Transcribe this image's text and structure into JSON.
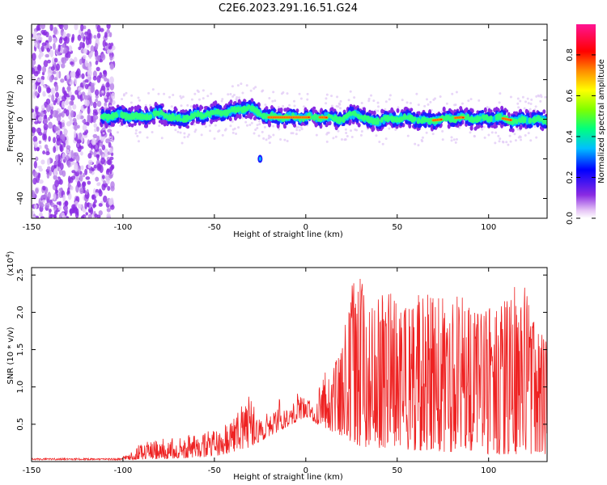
{
  "title": "C2E6.2023.291.16.51.G24",
  "chart_data": [
    {
      "type": "heatmap",
      "xlabel": "Height of straight line (km)",
      "ylabel": "Frequency (Hz)",
      "xlim": [
        -150,
        132
      ],
      "ylim": [
        -50,
        48
      ],
      "xticks": [
        "-150",
        "-100",
        "-50",
        "0",
        "50",
        "100"
      ],
      "yticks": [
        "-40",
        "-20",
        "0",
        "20",
        "40"
      ],
      "colorbar": {
        "label": "Normalized spectral amplitude",
        "range": [
          0,
          0.95
        ],
        "ticks": [
          "0.0",
          "0.2",
          "0.4",
          "0.6",
          "0.8"
        ],
        "colors": [
          "#ffffff",
          "#e9c9f7",
          "#8a2be2",
          "#0000ff",
          "#00bfff",
          "#00ff7f",
          "#7fff00",
          "#ffff00",
          "#ff8c00",
          "#ff0000",
          "#ff1493"
        ]
      },
      "noise_region_x": [
        -150,
        -105
      ],
      "noise_region_y": [
        -50,
        48
      ],
      "ridge": {
        "x_range": [
          -112,
          132
        ],
        "center_hz": [
          [
            -112,
            1
          ],
          [
            -100,
            2
          ],
          [
            -90,
            1
          ],
          [
            -80,
            3
          ],
          [
            -70,
            0
          ],
          [
            -60,
            2
          ],
          [
            -50,
            3
          ],
          [
            -40,
            4
          ],
          [
            -32,
            6
          ],
          [
            -25,
            3
          ],
          [
            -20,
            1
          ],
          [
            -10,
            1
          ],
          [
            0,
            1
          ],
          [
            10,
            1
          ],
          [
            20,
            0
          ],
          [
            27,
            3
          ],
          [
            35,
            -1
          ],
          [
            45,
            0
          ],
          [
            55,
            1
          ],
          [
            65,
            -1
          ],
          [
            75,
            0
          ],
          [
            85,
            1
          ],
          [
            95,
            0
          ],
          [
            105,
            1
          ],
          [
            115,
            -1
          ],
          [
            125,
            0
          ],
          [
            132,
            -1
          ]
        ],
        "peak_segments": [
          [
            -20,
            2
          ],
          [
            8,
            12
          ],
          [
            70,
            74
          ],
          [
            82,
            86
          ],
          [
            108,
            112
          ]
        ],
        "outlier": {
          "x": -25,
          "hz": -20
        }
      }
    },
    {
      "type": "line",
      "xlabel": "Height of straight line (km)",
      "ylabel": "SNR (10 * v/v)",
      "yscale_label": "(x10",
      "yscale_exp": "4",
      "yscale_close": ")",
      "xlim": [
        -150,
        132
      ],
      "ylim": [
        0,
        2.6
      ],
      "xticks": [
        "-150",
        "-100",
        "-50",
        "0",
        "50",
        "100"
      ],
      "yticks": [
        "0.5",
        "1.0",
        "1.5",
        "2.0",
        "2.5"
      ],
      "series": [
        {
          "color": "#ee2222",
          "envelope": [
            [
              -150,
              0.03
            ],
            [
              -120,
              0.04
            ],
            [
              -105,
              0.05
            ],
            [
              -98,
              0.1
            ],
            [
              -90,
              0.25
            ],
            [
              -80,
              0.3
            ],
            [
              -65,
              0.35
            ],
            [
              -55,
              0.4
            ],
            [
              -45,
              0.45
            ],
            [
              -38,
              0.8
            ],
            [
              -33,
              1.0
            ],
            [
              -25,
              0.55
            ],
            [
              -15,
              0.85
            ],
            [
              -10,
              0.75
            ],
            [
              -5,
              0.95
            ],
            [
              0,
              0.85
            ],
            [
              5,
              0.8
            ],
            [
              10,
              1.2
            ],
            [
              20,
              1.6
            ],
            [
              25,
              2.35
            ],
            [
              30,
              2.6
            ],
            [
              35,
              2.1
            ],
            [
              45,
              2.3
            ],
            [
              55,
              2.1
            ],
            [
              65,
              2.4
            ],
            [
              75,
              2.2
            ],
            [
              85,
              2.3
            ],
            [
              95,
              2.0
            ],
            [
              105,
              2.3
            ],
            [
              110,
              2.3
            ],
            [
              120,
              2.4
            ],
            [
              125,
              2.0
            ],
            [
              132,
              1.6
            ]
          ],
          "floor": [
            [
              -150,
              0.01
            ],
            [
              -100,
              0.02
            ],
            [
              -60,
              0.05
            ],
            [
              -40,
              0.1
            ],
            [
              -30,
              0.2
            ],
            [
              -15,
              0.4
            ],
            [
              0,
              0.6
            ],
            [
              10,
              0.45
            ],
            [
              30,
              0.2
            ],
            [
              60,
              0.15
            ],
            [
              100,
              0.1
            ],
            [
              132,
              0.1
            ]
          ]
        }
      ]
    }
  ]
}
